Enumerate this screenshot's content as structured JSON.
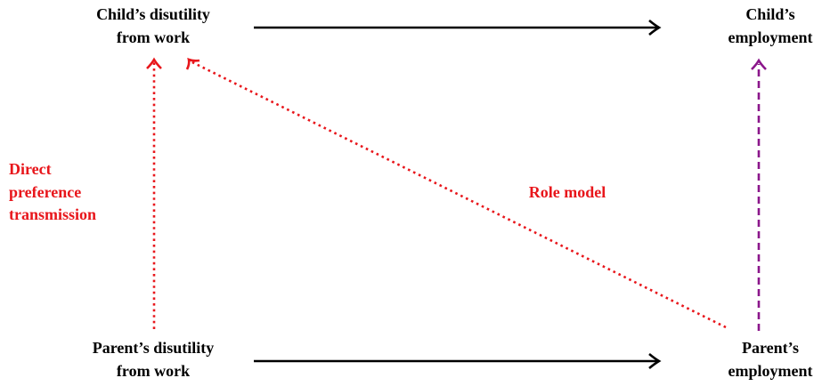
{
  "nodes": [
    {
      "lines": [
        "Child’s disutility",
        "from work"
      ]
    },
    {
      "lines": [
        "Child’s",
        "employment"
      ]
    },
    {
      "lines": [
        "Parent’s disutility",
        "from work"
      ]
    },
    {
      "lines": [
        "Parent’s",
        "employment"
      ]
    }
  ],
  "edges": [
    {
      "lines": [
        "Direct",
        "preference",
        "transmission"
      ]
    },
    {
      "lines": [
        "Role model"
      ]
    }
  ]
}
